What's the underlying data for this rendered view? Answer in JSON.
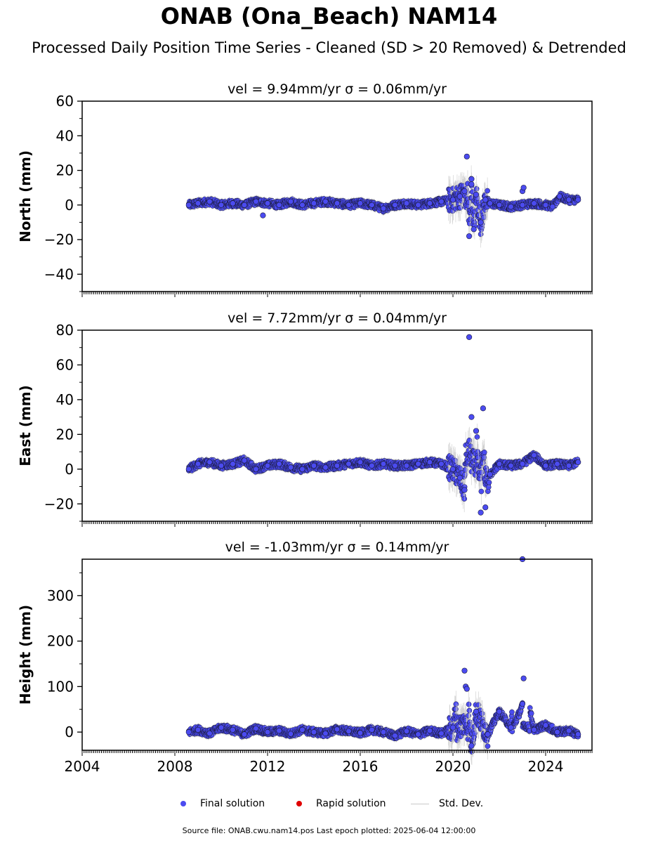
{
  "title": "ONAB (Ona_Beach) NAM14",
  "subtitle": "Processed Daily Position Time Series - Cleaned (SD > 20 Removed) & Detrended",
  "footer": "Source file: ONAB.cwu.nam14.pos  Last epoch plotted: 2025-06-04 12:00:00",
  "legend": {
    "final": "Final solution",
    "rapid": "Rapid solution",
    "std": "Std. Dev."
  },
  "colors": {
    "final": "#4b4bf0",
    "rapid": "#e00000",
    "std": "#c8c8c8",
    "edge": "#1a1a3a"
  },
  "chart_data": [
    {
      "type": "scatter",
      "title": "vel = 9.94mm/yr   σ = 0.06mm/yr",
      "ylabel": "North (mm)",
      "xlim": [
        2004,
        2026
      ],
      "ylim": [
        -50,
        60
      ],
      "yticks": [
        -40,
        -20,
        0,
        20,
        40,
        60
      ],
      "ytick_labels": [
        "−40",
        "−20",
        "0",
        "20",
        "40",
        "60"
      ],
      "series": [
        {
          "name": "Final solution",
          "x": [
            2008.6,
            2009.0,
            2009.5,
            2010.0,
            2010.5,
            2011.0,
            2011.5,
            2012.0,
            2012.5,
            2013.0,
            2013.5,
            2014.0,
            2014.5,
            2015.0,
            2015.5,
            2016.0,
            2016.5,
            2017.0,
            2017.5,
            2018.0,
            2018.5,
            2019.0,
            2019.5,
            2020.0,
            2020.3,
            2020.5,
            2020.6,
            2020.7,
            2020.8,
            2020.9,
            2021.0,
            2021.2,
            2021.4,
            2021.6,
            2022.0,
            2022.5,
            2023.0,
            2023.5,
            2024.0,
            2024.3,
            2024.6,
            2025.0,
            2025.4
          ],
          "y": [
            0,
            1,
            2,
            0,
            1,
            0,
            2,
            1,
            0,
            2,
            0,
            1,
            2,
            1,
            0,
            1,
            0,
            -2,
            0,
            1,
            0,
            1,
            2,
            3,
            5,
            8,
            28,
            -18,
            12,
            -14,
            6,
            -10,
            3,
            1,
            0,
            -1,
            0,
            1,
            0,
            -1,
            5,
            3,
            3
          ]
        },
        {
          "name": "Final solution (outliers)",
          "x": [
            2011.8,
            2020.8,
            2023.0,
            2023.05
          ],
          "y": [
            -6,
            15,
            8,
            10
          ]
        }
      ]
    },
    {
      "type": "scatter",
      "title": "vel = 7.72mm/yr   σ = 0.04mm/yr",
      "ylabel": "East (mm)",
      "xlim": [
        2004,
        2026
      ],
      "ylim": [
        -30,
        80
      ],
      "yticks": [
        -20,
        0,
        20,
        40,
        60,
        80
      ],
      "ytick_labels": [
        "−20",
        "0",
        "20",
        "40",
        "60",
        "80"
      ],
      "series": [
        {
          "name": "Final solution",
          "x": [
            2008.6,
            2009.0,
            2009.5,
            2010.0,
            2010.5,
            2011.0,
            2011.5,
            2012.0,
            2012.5,
            2013.0,
            2013.5,
            2014.0,
            2014.5,
            2015.0,
            2015.5,
            2016.0,
            2016.5,
            2017.0,
            2017.5,
            2018.0,
            2018.5,
            2019.0,
            2019.5,
            2020.0,
            2020.3,
            2020.5,
            2020.7,
            2020.8,
            2021.0,
            2021.2,
            2021.3,
            2021.4,
            2021.6,
            2022.0,
            2022.5,
            2023.0,
            2023.5,
            2024.0,
            2024.5,
            2025.0,
            2025.4
          ],
          "y": [
            0,
            3,
            4,
            2,
            3,
            5,
            0,
            2,
            3,
            1,
            0,
            2,
            1,
            2,
            3,
            4,
            2,
            3,
            2,
            2,
            3,
            4,
            3,
            0,
            -5,
            -12,
            76,
            30,
            22,
            -25,
            35,
            -22,
            -3,
            3,
            2,
            3,
            8,
            2,
            3,
            2,
            4
          ]
        }
      ]
    },
    {
      "type": "scatter",
      "title": "vel = -1.03mm/yr   σ = 0.14mm/yr",
      "ylabel": "Height (mm)",
      "xlabel": "",
      "xlim": [
        2004,
        2026
      ],
      "ylim": [
        -40,
        380
      ],
      "yticks": [
        0,
        100,
        200,
        300
      ],
      "ytick_labels": [
        "0",
        "100",
        "200",
        "300"
      ],
      "xticks": [
        2004,
        2008,
        2012,
        2016,
        2020,
        2024
      ],
      "xtick_labels": [
        "2004",
        "2008",
        "2012",
        "2016",
        "2020",
        "2024"
      ],
      "series": [
        {
          "name": "Final solution",
          "x": [
            2008.6,
            2009.0,
            2009.5,
            2010.0,
            2010.5,
            2011.0,
            2011.5,
            2012.0,
            2012.5,
            2013.0,
            2013.5,
            2014.0,
            2014.5,
            2015.0,
            2015.5,
            2016.0,
            2016.5,
            2017.0,
            2017.5,
            2018.0,
            2018.5,
            2019.0,
            2019.5,
            2020.0,
            2020.5,
            2020.55,
            2020.6,
            2020.8,
            2021.0,
            2021.5,
            2022.0,
            2022.5,
            2023.0,
            2023.0,
            2023.05,
            2023.5,
            2024.0,
            2024.5,
            2025.0,
            2025.4
          ],
          "y": [
            0,
            5,
            -3,
            10,
            5,
            -5,
            8,
            0,
            3,
            -4,
            5,
            0,
            -3,
            6,
            2,
            -2,
            5,
            0,
            -8,
            2,
            -5,
            3,
            -3,
            10,
            135,
            100,
            95,
            -30,
            45,
            -5,
            45,
            10,
            380,
            62,
            118,
            5,
            15,
            0,
            3,
            -5
          ]
        }
      ]
    }
  ]
}
